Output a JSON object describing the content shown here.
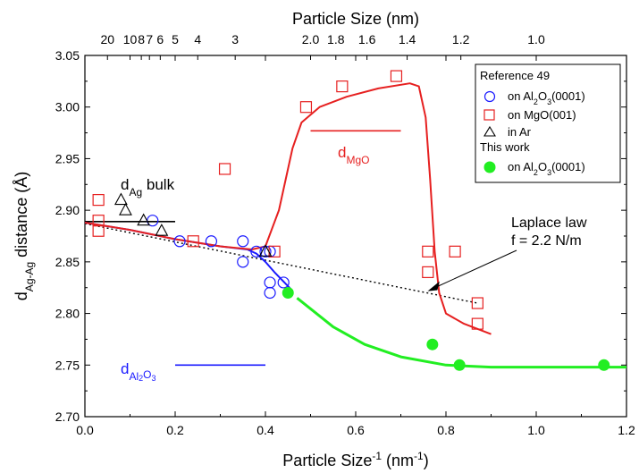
{
  "chart_data": {
    "type": "scatter",
    "xlabel_base": "Particle Size",
    "xlabel_exp": "-1",
    "xlabel_unit": " (nm",
    "xlabel_unit_exp": "-1",
    "xlabel_close": ")",
    "top_xlabel": "Particle Size (nm)",
    "ylabel_main": "d",
    "ylabel_sub": "Ag-Ag",
    "ylabel_rest": " distance (Å)",
    "xlim": [
      0.0,
      1.2
    ],
    "ylim": [
      2.7,
      3.05
    ],
    "x_ticks": [
      0.0,
      0.2,
      0.4,
      0.6,
      0.8,
      1.0,
      1.2
    ],
    "x_tick_labels": [
      "0.0",
      "0.2",
      "0.4",
      "0.6",
      "0.8",
      "1.0",
      "1.2"
    ],
    "y_ticks": [
      2.7,
      2.75,
      2.8,
      2.85,
      2.9,
      2.95,
      3.0,
      3.05
    ],
    "y_tick_labels": [
      "2.70",
      "2.75",
      "2.80",
      "2.85",
      "2.90",
      "2.95",
      "3.00",
      "3.05"
    ],
    "top_ticks": [
      {
        "label": "20",
        "x": 0.05
      },
      {
        "label": "10",
        "x": 0.1
      },
      {
        "label": "8",
        "x": 0.125
      },
      {
        "label": "7",
        "x": 0.143
      },
      {
        "label": "6",
        "x": 0.167
      },
      {
        "label": "5",
        "x": 0.2
      },
      {
        "label": "4",
        "x": 0.25
      },
      {
        "label": "3",
        "x": 0.333
      },
      {
        "label": "2.0",
        "x": 0.5
      },
      {
        "label": "1.8",
        "x": 0.556
      },
      {
        "label": "1.6",
        "x": 0.625
      },
      {
        "label": "1.4",
        "x": 0.714
      },
      {
        "label": "1.2",
        "x": 0.833
      },
      {
        "label": "1.0",
        "x": 1.0
      }
    ],
    "series": [
      {
        "name": "on Al2O3(0001)",
        "marker": "circle-open",
        "color": "#1a1aff",
        "points": [
          [
            0.15,
            2.89
          ],
          [
            0.21,
            2.87
          ],
          [
            0.28,
            2.87
          ],
          [
            0.35,
            2.87
          ],
          [
            0.35,
            2.85
          ],
          [
            0.38,
            2.86
          ],
          [
            0.41,
            2.86
          ],
          [
            0.41,
            2.83
          ],
          [
            0.41,
            2.82
          ],
          [
            0.44,
            2.83
          ],
          [
            0.4,
            2.86
          ]
        ]
      },
      {
        "name": "on MgO(001)",
        "marker": "square-open",
        "color": "#e62020",
        "points": [
          [
            0.03,
            2.91
          ],
          [
            0.03,
            2.89
          ],
          [
            0.03,
            2.88
          ],
          [
            0.24,
            2.87
          ],
          [
            0.31,
            2.94
          ],
          [
            0.42,
            2.86
          ],
          [
            0.49,
            3.0
          ],
          [
            0.57,
            3.02
          ],
          [
            0.69,
            3.03
          ],
          [
            0.76,
            2.86
          ],
          [
            0.76,
            2.84
          ],
          [
            0.82,
            2.86
          ],
          [
            0.87,
            2.81
          ],
          [
            0.87,
            2.79
          ]
        ]
      },
      {
        "name": "in Ar",
        "marker": "triangle-open",
        "color": "#000000",
        "points": [
          [
            0.08,
            2.91
          ],
          [
            0.09,
            2.9
          ],
          [
            0.13,
            2.89
          ],
          [
            0.17,
            2.88
          ],
          [
            0.4,
            2.86
          ]
        ]
      },
      {
        "name": "on Al2O3(0001)",
        "marker": "circle-filled",
        "color": "#22ee22",
        "points": [
          [
            0.45,
            2.82
          ],
          [
            0.77,
            2.77
          ],
          [
            0.83,
            2.75
          ],
          [
            1.15,
            2.75
          ]
        ]
      }
    ],
    "curves": [
      {
        "name": "Laplace law",
        "color": "#000000",
        "style": "dotted",
        "points": [
          [
            0.0,
            2.887
          ],
          [
            0.87,
            2.81
          ]
        ]
      },
      {
        "name": "blue fit",
        "color": "#1a1aff",
        "style": "solid",
        "points": [
          [
            0.0,
            2.888
          ],
          [
            0.1,
            2.881
          ],
          [
            0.2,
            2.872
          ],
          [
            0.3,
            2.865
          ],
          [
            0.36,
            2.862
          ],
          [
            0.38,
            2.858
          ],
          [
            0.4,
            2.85
          ],
          [
            0.42,
            2.84
          ],
          [
            0.44,
            2.831
          ],
          [
            0.46,
            2.822
          ]
        ]
      },
      {
        "name": "red fit",
        "color": "#e62020",
        "style": "solid",
        "points": [
          [
            0.0,
            2.888
          ],
          [
            0.1,
            2.881
          ],
          [
            0.2,
            2.872
          ],
          [
            0.3,
            2.865
          ],
          [
            0.37,
            2.862
          ],
          [
            0.4,
            2.865
          ],
          [
            0.43,
            2.9
          ],
          [
            0.46,
            2.96
          ],
          [
            0.48,
            2.985
          ],
          [
            0.52,
            3.0
          ],
          [
            0.58,
            3.01
          ],
          [
            0.65,
            3.018
          ],
          [
            0.72,
            3.023
          ],
          [
            0.74,
            3.02
          ],
          [
            0.755,
            2.99
          ],
          [
            0.765,
            2.93
          ],
          [
            0.775,
            2.86
          ],
          [
            0.785,
            2.82
          ],
          [
            0.8,
            2.8
          ],
          [
            0.84,
            2.79
          ],
          [
            0.9,
            2.78
          ]
        ]
      },
      {
        "name": "green fit",
        "color": "#22ee22",
        "style": "solid",
        "points": [
          [
            0.47,
            2.815
          ],
          [
            0.55,
            2.787
          ],
          [
            0.62,
            2.77
          ],
          [
            0.7,
            2.758
          ],
          [
            0.8,
            2.75
          ],
          [
            0.9,
            2.748
          ],
          [
            1.0,
            2.748
          ],
          [
            1.2,
            2.748
          ]
        ]
      }
    ],
    "ref_lines": [
      {
        "name": "d_Ag bulk",
        "color": "#000000",
        "x1": 0.0,
        "x2": 0.2,
        "y": 2.889
      },
      {
        "name": "d_MgO",
        "color": "#e62020",
        "x1": 0.5,
        "x2": 0.7,
        "y": 2.977
      },
      {
        "name": "d_Al2O3",
        "color": "#1a1aff",
        "x1": 0.2,
        "x2": 0.4,
        "y": 2.75
      }
    ],
    "annotations": {
      "dag_main": "d",
      "dag_sub": "Ag",
      "dag_rest": " bulk",
      "dmgo_main": "d",
      "dmgo_sub": "MgO",
      "dal_main": "d",
      "dal_sub": "Al",
      "dal_sub2": "2",
      "dal_o": "O",
      "dal_sub3": "3",
      "laplace_line1": "Laplace law",
      "laplace_line2": "f = 2.2 N/m"
    },
    "legend": {
      "placement": "top-right",
      "ref_heading": "Reference  49",
      "this_heading": "This work",
      "entry1_pre": "on Al",
      "entry1_sub": "2",
      "entry1_mid": "O",
      "entry1_sub2": "3",
      "entry1_post": "(0001)",
      "entry2": "on MgO(001)",
      "entry3": "in Ar",
      "entry4_pre": "on Al",
      "entry4_sub": "2",
      "entry4_mid": "O",
      "entry4_sub2": "3",
      "entry4_post": "(0001)"
    }
  }
}
